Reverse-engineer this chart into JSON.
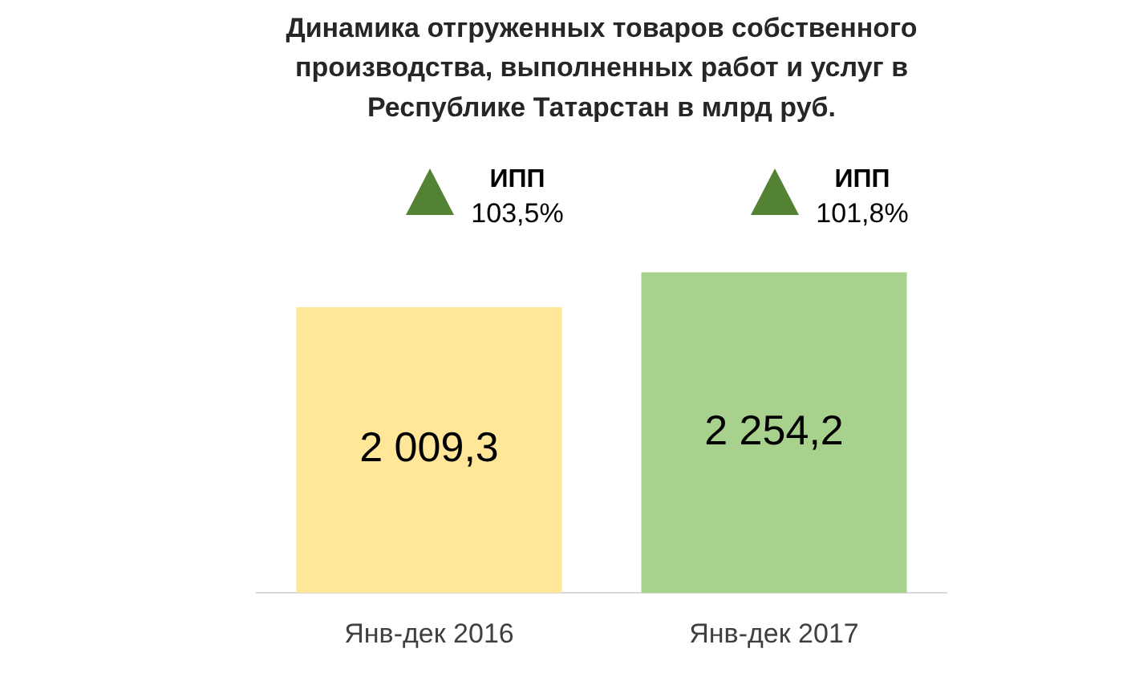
{
  "chart_data": {
    "type": "bar",
    "title": "Динамика отгруженных товаров собственного производства, выполненных работ и услуг в Республике Татарстан в млрд руб.",
    "categories": [
      "Янв-дек 2016",
      "Янв-дек 2017"
    ],
    "values": [
      2009.3,
      2254.2
    ],
    "colors": [
      "#ffe699",
      "#a9d18e"
    ],
    "value_labels": [
      "2 009,3",
      "2 254,2"
    ],
    "annotations": [
      "ИПП 103,5%",
      "ИПП 101,8%"
    ],
    "tick_labels": "x"
  }
}
